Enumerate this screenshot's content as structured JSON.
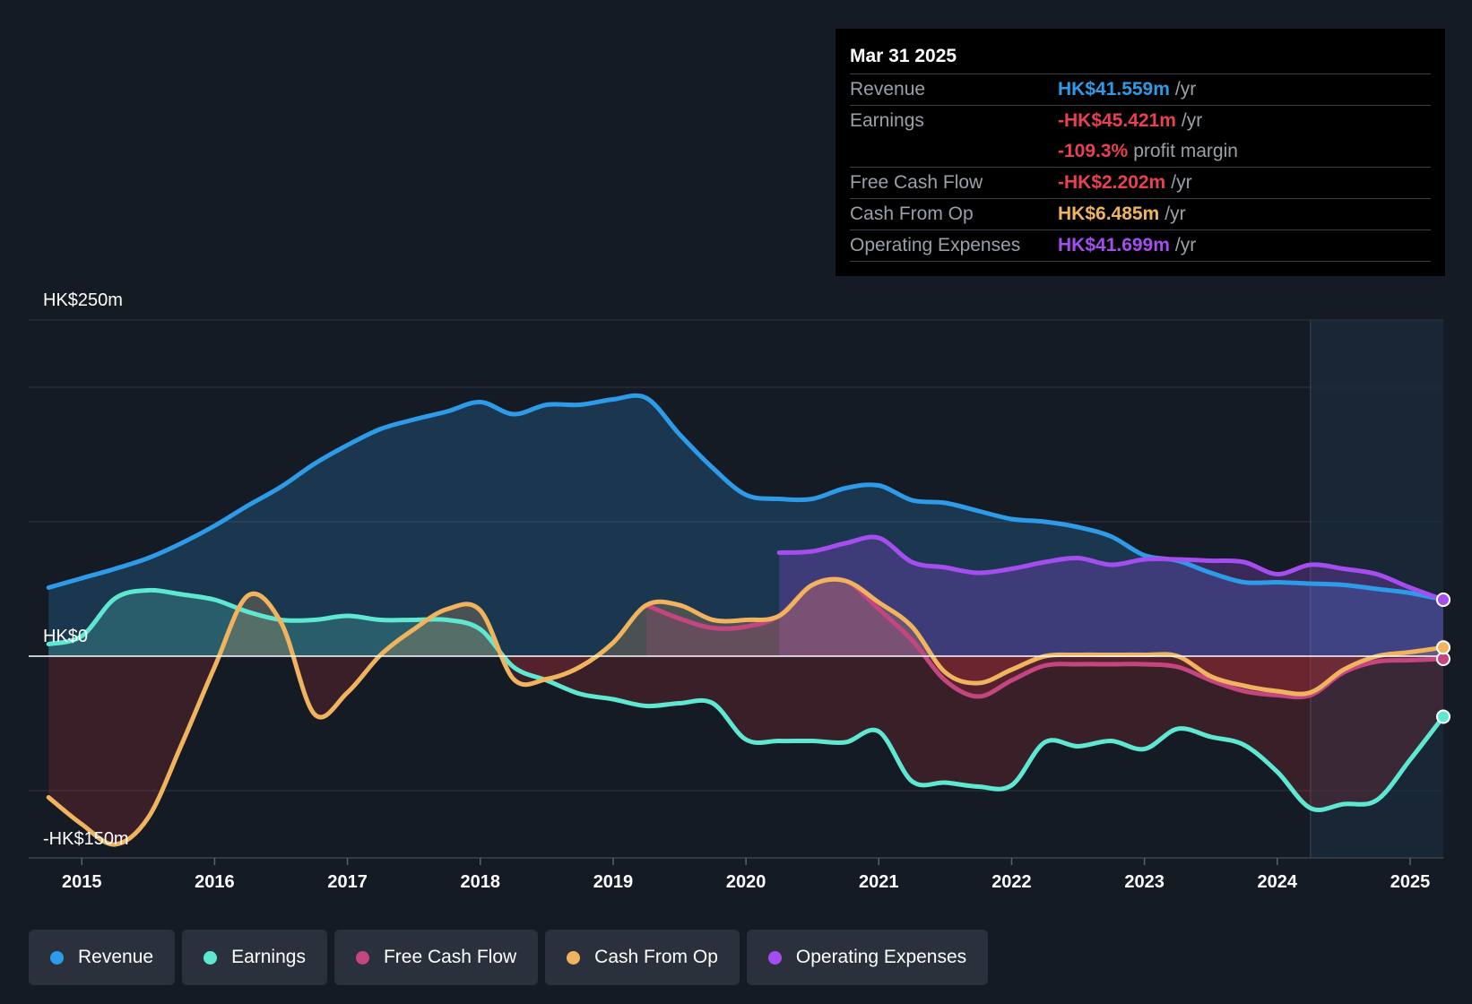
{
  "tooltip": {
    "date": "Mar 31 2025",
    "rows": [
      {
        "label": "Revenue",
        "value": "HK$41.559m",
        "unit": "/yr",
        "color": "#2e9be8"
      },
      {
        "label": "Earnings",
        "value": "-HK$45.421m",
        "unit": "/yr",
        "color": "#e8414f"
      },
      {
        "label": "",
        "value": "-109.3%",
        "unit": "profit margin",
        "color": "#e8414f"
      },
      {
        "label": "Free Cash Flow",
        "value": "-HK$2.202m",
        "unit": "/yr",
        "color": "#e8414f"
      },
      {
        "label": "Cash From Op",
        "value": "HK$6.485m",
        "unit": "/yr",
        "color": "#f0b35e"
      },
      {
        "label": "Operating Expenses",
        "value": "HK$41.699m",
        "unit": "/yr",
        "color": "#a54ef0"
      }
    ]
  },
  "legend": [
    {
      "label": "Revenue",
      "color": "#2e9be8"
    },
    {
      "label": "Earnings",
      "color": "#5ee8d2"
    },
    {
      "label": "Free Cash Flow",
      "color": "#c4467f"
    },
    {
      "label": "Cash From Op",
      "color": "#f0b35e"
    },
    {
      "label": "Operating Expenses",
      "color": "#a54ef0"
    }
  ],
  "chart_data": {
    "type": "line",
    "title": "",
    "xlabel": "",
    "ylabel": "",
    "y_axis_labels": [
      "HK$250m",
      "HK$0",
      "-HK$150m"
    ],
    "ylim": [
      -150,
      250
    ],
    "xlim": [
      2014.6,
      2025.25
    ],
    "x_ticks": [
      "2015",
      "2016",
      "2017",
      "2018",
      "2019",
      "2020",
      "2021",
      "2022",
      "2023",
      "2024",
      "2025"
    ],
    "forecast_region_start": 2024.25,
    "grid": true,
    "legend_position": "bottom",
    "series": [
      {
        "name": "Revenue",
        "color": "#2e9be8",
        "points": [
          [
            2014.75,
            51
          ],
          [
            2015.0,
            58
          ],
          [
            2015.25,
            65
          ],
          [
            2015.5,
            73
          ],
          [
            2015.75,
            84
          ],
          [
            2016.0,
            97
          ],
          [
            2016.25,
            112
          ],
          [
            2016.5,
            126
          ],
          [
            2016.75,
            143
          ],
          [
            2017.0,
            157
          ],
          [
            2017.25,
            169
          ],
          [
            2017.5,
            176
          ],
          [
            2017.75,
            182
          ],
          [
            2018.0,
            189
          ],
          [
            2018.25,
            180
          ],
          [
            2018.5,
            187
          ],
          [
            2018.75,
            187
          ],
          [
            2019.0,
            191
          ],
          [
            2019.25,
            192
          ],
          [
            2019.5,
            165
          ],
          [
            2019.75,
            140
          ],
          [
            2020.0,
            120
          ],
          [
            2020.25,
            117
          ],
          [
            2020.5,
            117
          ],
          [
            2020.75,
            125
          ],
          [
            2021.0,
            127
          ],
          [
            2021.25,
            116
          ],
          [
            2021.5,
            114
          ],
          [
            2021.75,
            108
          ],
          [
            2022.0,
            102
          ],
          [
            2022.25,
            100
          ],
          [
            2022.5,
            96
          ],
          [
            2022.75,
            89
          ],
          [
            2023.0,
            75
          ],
          [
            2023.25,
            71
          ],
          [
            2023.5,
            62
          ],
          [
            2023.75,
            55
          ],
          [
            2024.0,
            55
          ],
          [
            2024.25,
            54
          ],
          [
            2024.5,
            53
          ],
          [
            2024.75,
            50
          ],
          [
            2025.0,
            47
          ],
          [
            2025.25,
            42
          ]
        ]
      },
      {
        "name": "Earnings",
        "color": "#5ee8d2",
        "points": [
          [
            2014.75,
            9
          ],
          [
            2015.0,
            15
          ],
          [
            2015.25,
            43
          ],
          [
            2015.5,
            49
          ],
          [
            2015.75,
            46
          ],
          [
            2016.0,
            42
          ],
          [
            2016.25,
            33
          ],
          [
            2016.5,
            27
          ],
          [
            2016.75,
            27
          ],
          [
            2017.0,
            30
          ],
          [
            2017.25,
            27
          ],
          [
            2017.5,
            27
          ],
          [
            2017.75,
            27
          ],
          [
            2018.0,
            20
          ],
          [
            2018.25,
            -8
          ],
          [
            2018.5,
            -18
          ],
          [
            2018.75,
            -28
          ],
          [
            2019.0,
            -32
          ],
          [
            2019.25,
            -37
          ],
          [
            2019.5,
            -35
          ],
          [
            2019.75,
            -35
          ],
          [
            2020.0,
            -62
          ],
          [
            2020.25,
            -63
          ],
          [
            2020.5,
            -63
          ],
          [
            2020.75,
            -64
          ],
          [
            2021.0,
            -56
          ],
          [
            2021.25,
            -93
          ],
          [
            2021.5,
            -94
          ],
          [
            2021.75,
            -97
          ],
          [
            2022.0,
            -96
          ],
          [
            2022.25,
            -64
          ],
          [
            2022.5,
            -67
          ],
          [
            2022.75,
            -63
          ],
          [
            2023.0,
            -69
          ],
          [
            2023.25,
            -54
          ],
          [
            2023.5,
            -60
          ],
          [
            2023.75,
            -66
          ],
          [
            2024.0,
            -86
          ],
          [
            2024.25,
            -113
          ],
          [
            2024.5,
            -110
          ],
          [
            2024.75,
            -107
          ],
          [
            2025.0,
            -77
          ],
          [
            2025.25,
            -45
          ]
        ]
      },
      {
        "name": "Free Cash Flow",
        "color": "#c4467f",
        "points": [
          [
            2019.25,
            38
          ],
          [
            2019.5,
            28
          ],
          [
            2019.75,
            21
          ],
          [
            2020.0,
            22
          ],
          [
            2020.25,
            30
          ],
          [
            2020.5,
            53
          ],
          [
            2020.75,
            56
          ],
          [
            2021.0,
            35
          ],
          [
            2021.25,
            12
          ],
          [
            2021.5,
            -18
          ],
          [
            2021.75,
            -30
          ],
          [
            2022.0,
            -18
          ],
          [
            2022.25,
            -7
          ],
          [
            2022.5,
            -6
          ],
          [
            2022.75,
            -6
          ],
          [
            2023.0,
            -6
          ],
          [
            2023.25,
            -8
          ],
          [
            2023.5,
            -18
          ],
          [
            2023.75,
            -26
          ],
          [
            2024.0,
            -29
          ],
          [
            2024.25,
            -29
          ],
          [
            2024.5,
            -12
          ],
          [
            2024.75,
            -4
          ],
          [
            2025.0,
            -3
          ],
          [
            2025.25,
            -2
          ]
        ]
      },
      {
        "name": "Cash From Op",
        "color": "#f0b35e",
        "points": [
          [
            2014.75,
            -105
          ],
          [
            2015.0,
            -125
          ],
          [
            2015.25,
            -140
          ],
          [
            2015.5,
            -120
          ],
          [
            2015.75,
            -66
          ],
          [
            2016.0,
            -8
          ],
          [
            2016.25,
            45
          ],
          [
            2016.5,
            25
          ],
          [
            2016.75,
            -43
          ],
          [
            2017.0,
            -27
          ],
          [
            2017.25,
            1
          ],
          [
            2017.5,
            20
          ],
          [
            2017.75,
            35
          ],
          [
            2018.0,
            34
          ],
          [
            2018.25,
            -17
          ],
          [
            2018.5,
            -17
          ],
          [
            2018.75,
            -8
          ],
          [
            2019.0,
            10
          ],
          [
            2019.25,
            38
          ],
          [
            2019.5,
            38
          ],
          [
            2019.75,
            27
          ],
          [
            2020.0,
            27
          ],
          [
            2020.25,
            30
          ],
          [
            2020.5,
            53
          ],
          [
            2020.75,
            56
          ],
          [
            2021.0,
            40
          ],
          [
            2021.25,
            22
          ],
          [
            2021.5,
            -12
          ],
          [
            2021.75,
            -20
          ],
          [
            2022.0,
            -10
          ],
          [
            2022.25,
            0
          ],
          [
            2022.5,
            1
          ],
          [
            2022.75,
            1
          ],
          [
            2023.0,
            1
          ],
          [
            2023.25,
            0
          ],
          [
            2023.5,
            -15
          ],
          [
            2023.75,
            -22
          ],
          [
            2024.0,
            -26
          ],
          [
            2024.25,
            -27
          ],
          [
            2024.5,
            -10
          ],
          [
            2024.75,
            0
          ],
          [
            2025.0,
            3
          ],
          [
            2025.25,
            6.5
          ]
        ]
      },
      {
        "name": "Operating Expenses",
        "color": "#a54ef0",
        "points": [
          [
            2020.25,
            77
          ],
          [
            2020.5,
            78
          ],
          [
            2020.75,
            84
          ],
          [
            2021.0,
            88
          ],
          [
            2021.25,
            70
          ],
          [
            2021.5,
            66
          ],
          [
            2021.75,
            62
          ],
          [
            2022.0,
            65
          ],
          [
            2022.25,
            70
          ],
          [
            2022.5,
            73
          ],
          [
            2022.75,
            68
          ],
          [
            2023.0,
            72
          ],
          [
            2023.25,
            72
          ],
          [
            2023.5,
            71
          ],
          [
            2023.75,
            70
          ],
          [
            2024.0,
            61
          ],
          [
            2024.25,
            68
          ],
          [
            2024.5,
            65
          ],
          [
            2024.75,
            61
          ],
          [
            2025.0,
            51
          ],
          [
            2025.25,
            42
          ]
        ]
      }
    ]
  }
}
